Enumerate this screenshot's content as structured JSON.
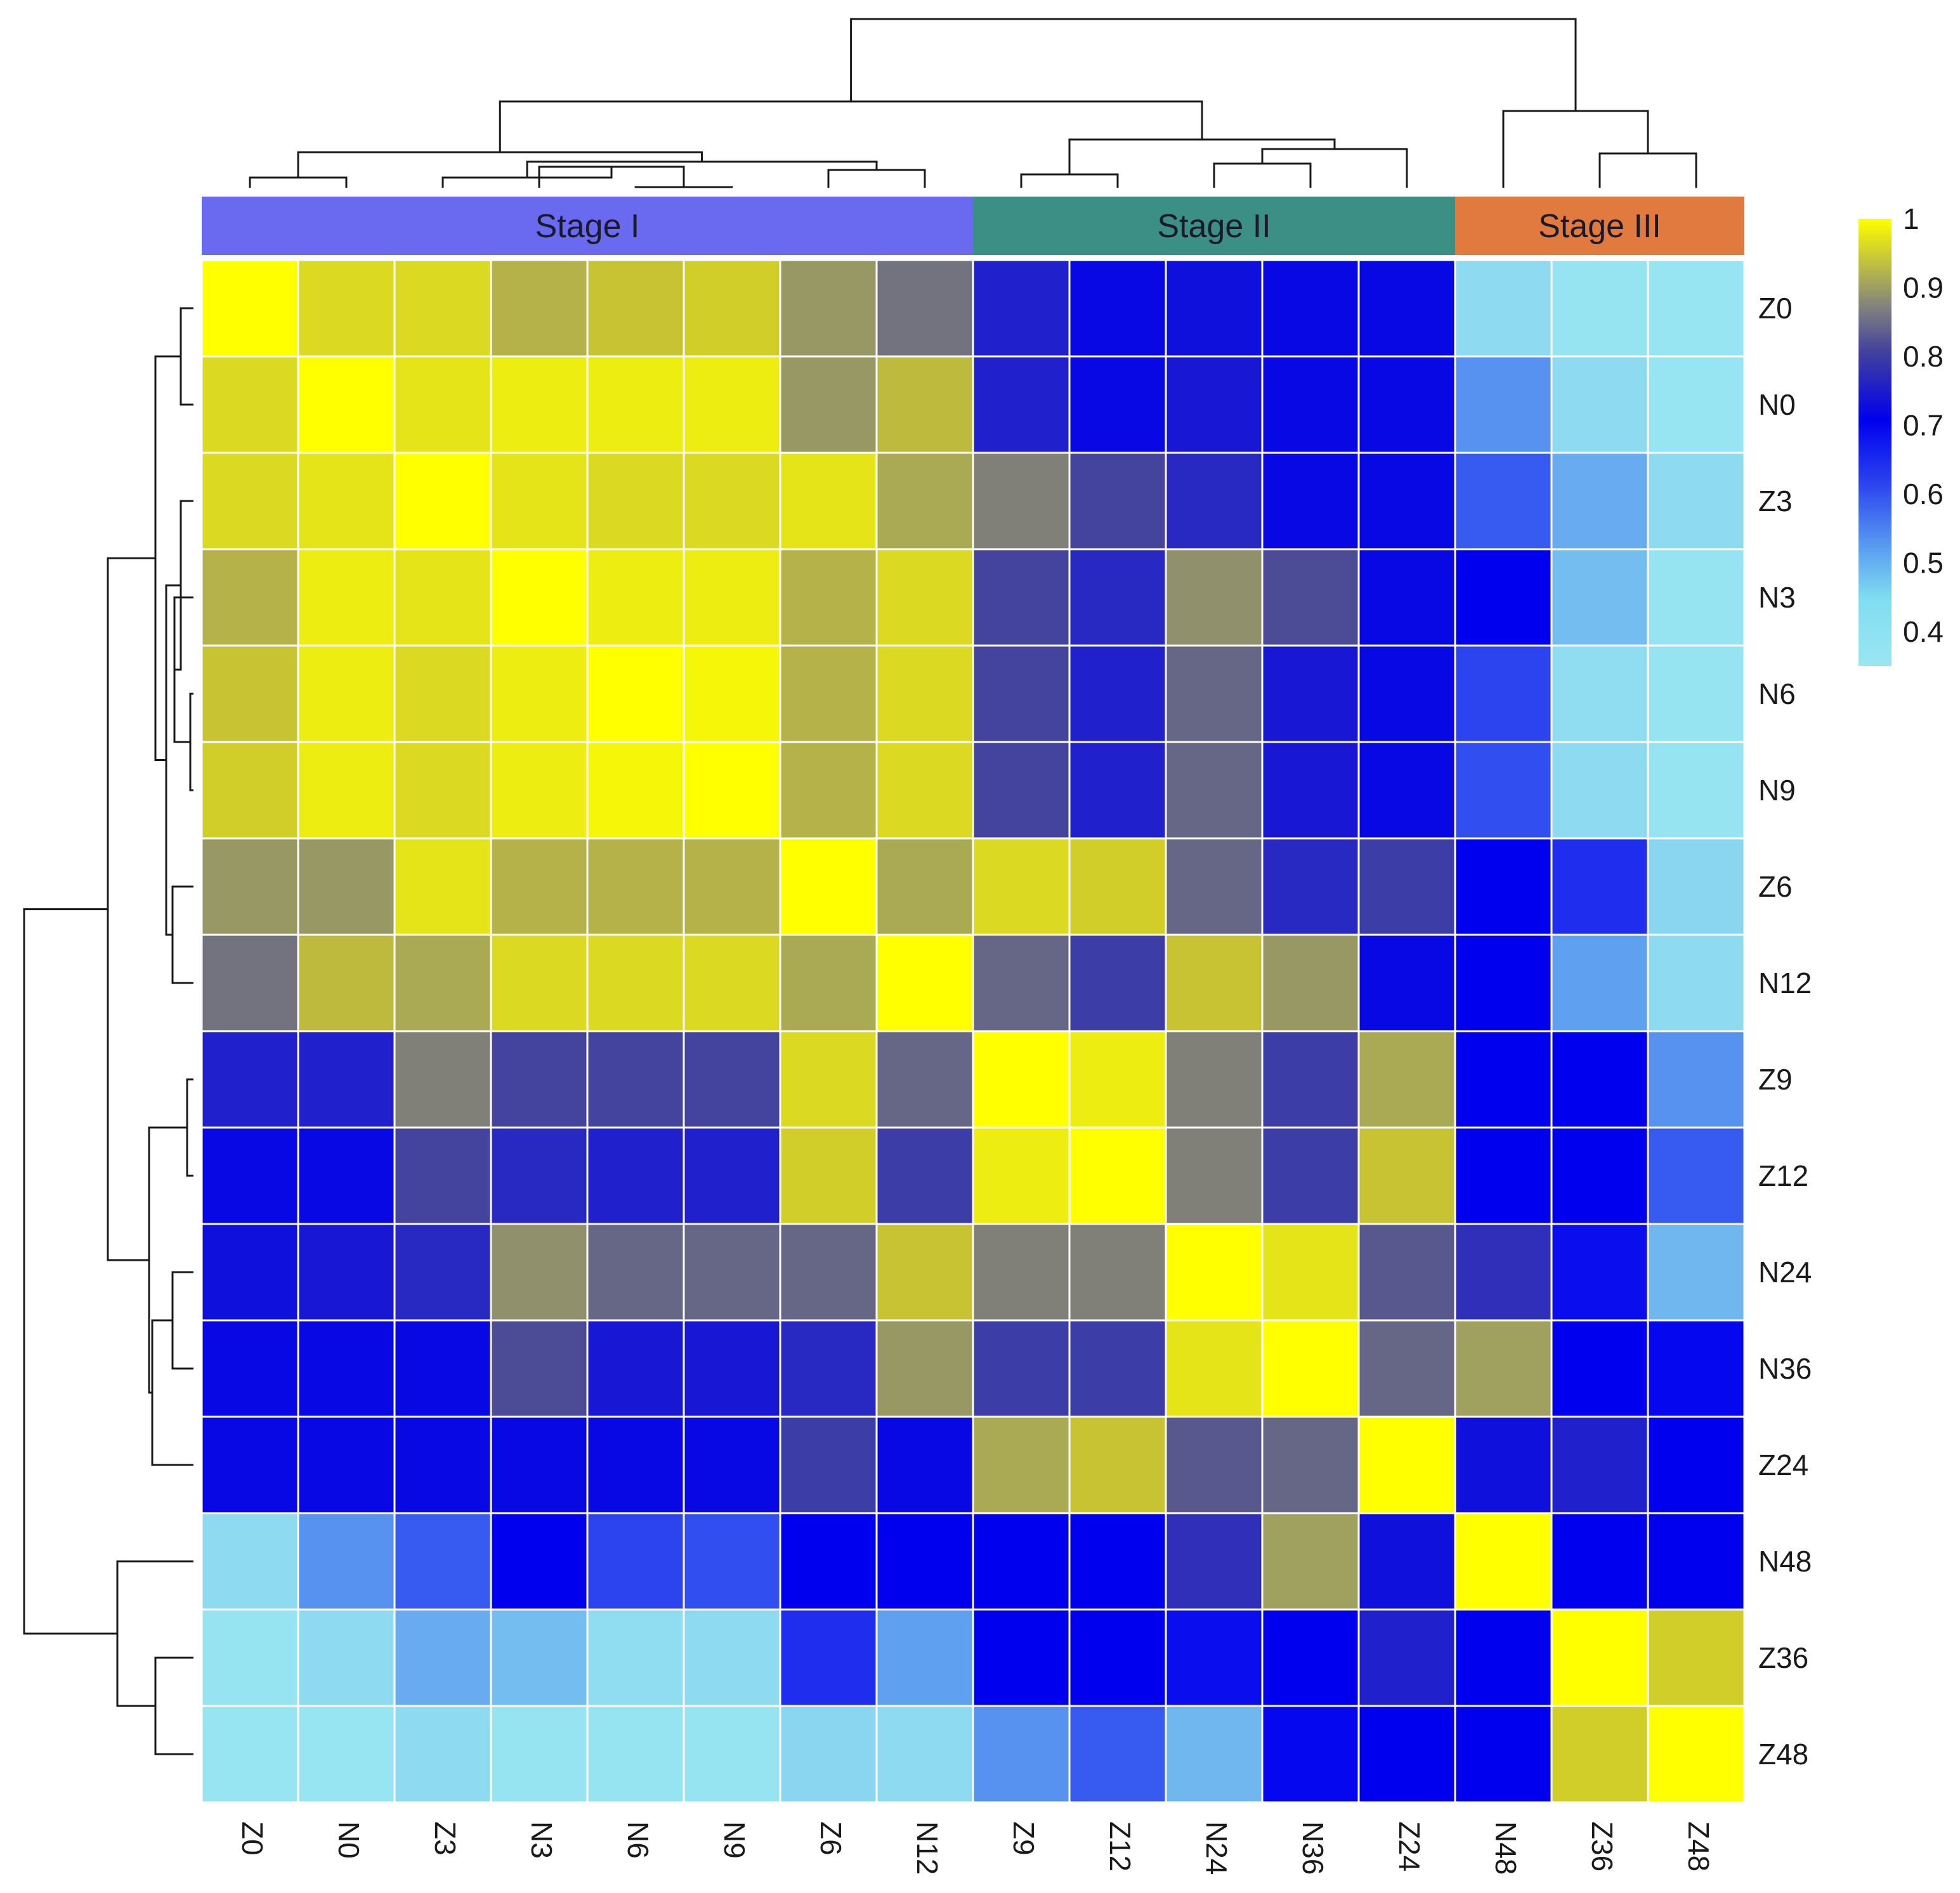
{
  "chart_data": {
    "type": "heatmap",
    "title": "",
    "labels": [
      "Z0",
      "N0",
      "Z3",
      "N3",
      "N6",
      "N9",
      "Z6",
      "N12",
      "Z9",
      "Z12",
      "N24",
      "N36",
      "Z24",
      "N48",
      "Z36",
      "Z48"
    ],
    "stages": [
      {
        "label": "Stage I",
        "start": 0,
        "end": 7,
        "color": "#6A6AF0"
      },
      {
        "label": "Stage II",
        "start": 8,
        "end": 12,
        "color": "#3B8F84"
      },
      {
        "label": "Stage III",
        "start": 13,
        "end": 15,
        "color": "#E07A3F"
      }
    ],
    "matrix": [
      [
        1.0,
        0.96,
        0.96,
        0.92,
        0.94,
        0.95,
        0.89,
        0.85,
        0.76,
        0.73,
        0.74,
        0.73,
        0.73,
        0.45,
        0.42,
        0.4
      ],
      [
        0.96,
        1.0,
        0.97,
        0.98,
        0.98,
        0.98,
        0.89,
        0.93,
        0.76,
        0.73,
        0.75,
        0.73,
        0.73,
        0.58,
        0.45,
        0.4
      ],
      [
        0.96,
        0.97,
        1.0,
        0.97,
        0.96,
        0.96,
        0.97,
        0.91,
        0.86,
        0.81,
        0.77,
        0.73,
        0.73,
        0.62,
        0.55,
        0.45
      ],
      [
        0.92,
        0.98,
        0.97,
        1.0,
        0.98,
        0.98,
        0.92,
        0.96,
        0.81,
        0.77,
        0.88,
        0.82,
        0.73,
        0.72,
        0.52,
        0.42
      ],
      [
        0.94,
        0.98,
        0.96,
        0.98,
        1.0,
        0.99,
        0.92,
        0.96,
        0.81,
        0.76,
        0.84,
        0.75,
        0.73,
        0.64,
        0.44,
        0.42
      ],
      [
        0.95,
        0.98,
        0.96,
        0.98,
        0.99,
        1.0,
        0.92,
        0.96,
        0.81,
        0.76,
        0.84,
        0.75,
        0.73,
        0.63,
        0.45,
        0.42
      ],
      [
        0.89,
        0.89,
        0.97,
        0.92,
        0.92,
        0.92,
        1.0,
        0.91,
        0.96,
        0.95,
        0.84,
        0.77,
        0.8,
        0.72,
        0.66,
        0.46
      ],
      [
        0.85,
        0.93,
        0.91,
        0.96,
        0.96,
        0.96,
        0.91,
        1.0,
        0.84,
        0.8,
        0.94,
        0.89,
        0.73,
        0.72,
        0.57,
        0.45
      ],
      [
        0.76,
        0.76,
        0.86,
        0.81,
        0.81,
        0.81,
        0.96,
        0.84,
        1.0,
        0.98,
        0.86,
        0.8,
        0.91,
        0.72,
        0.72,
        0.58
      ],
      [
        0.73,
        0.73,
        0.81,
        0.77,
        0.76,
        0.76,
        0.95,
        0.8,
        0.98,
        1.0,
        0.86,
        0.8,
        0.94,
        0.72,
        0.72,
        0.62
      ],
      [
        0.74,
        0.75,
        0.77,
        0.88,
        0.84,
        0.84,
        0.84,
        0.94,
        0.86,
        0.86,
        1.0,
        0.97,
        0.83,
        0.78,
        0.7,
        0.53
      ],
      [
        0.73,
        0.73,
        0.73,
        0.82,
        0.75,
        0.75,
        0.77,
        0.89,
        0.8,
        0.8,
        0.97,
        1.0,
        0.84,
        0.9,
        0.72,
        0.71
      ],
      [
        0.73,
        0.73,
        0.73,
        0.73,
        0.73,
        0.73,
        0.8,
        0.73,
        0.91,
        0.94,
        0.83,
        0.84,
        1.0,
        0.74,
        0.76,
        0.72
      ],
      [
        0.45,
        0.58,
        0.62,
        0.72,
        0.64,
        0.63,
        0.72,
        0.72,
        0.72,
        0.72,
        0.78,
        0.9,
        0.74,
        1.0,
        0.72,
        0.72
      ],
      [
        0.42,
        0.45,
        0.55,
        0.52,
        0.44,
        0.45,
        0.66,
        0.57,
        0.72,
        0.72,
        0.7,
        0.72,
        0.76,
        0.72,
        1.0,
        0.95
      ],
      [
        0.4,
        0.4,
        0.45,
        0.42,
        0.42,
        0.42,
        0.46,
        0.45,
        0.58,
        0.62,
        0.53,
        0.71,
        0.72,
        0.72,
        0.95,
        1.0
      ]
    ],
    "colorbar": {
      "min": 0.35,
      "max": 1.0,
      "ticks": [
        "1",
        "0.9",
        "0.8",
        "0.7",
        "0.6",
        "0.5",
        "0.4"
      ]
    },
    "row_dendrogram": true,
    "column_dendrogram": true
  }
}
